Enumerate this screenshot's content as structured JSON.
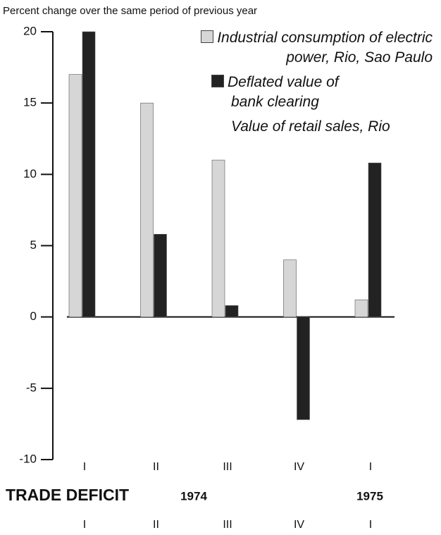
{
  "chart_data": {
    "type": "bar",
    "title": "Percent change over the same period of previous year",
    "categories": [
      "I",
      "II",
      "III",
      "IV",
      "I"
    ],
    "series": [
      {
        "name": "Industrial consumption of electric power, Rio, Sao Paulo",
        "color": "#d6d6d6",
        "values": [
          17,
          15,
          11,
          4,
          1.2
        ]
      },
      {
        "name": "Deflated value of bank clearing",
        "color": "#222222",
        "values": [
          20,
          5.8,
          0.8,
          -7.2,
          10.8
        ]
      },
      {
        "name": "Value of retail sales, Rio",
        "values": [
          null,
          null,
          null,
          null,
          null
        ]
      }
    ],
    "year_labels": [
      "1974",
      "1975"
    ],
    "trade_deficit": {
      "label": "TRADE DEFICIT",
      "categories": [
        "I",
        "II",
        "III",
        "IV",
        "I"
      ]
    },
    "ylim": [
      -10,
      20
    ],
    "yticks": [
      -10,
      -5,
      0,
      5,
      10,
      15,
      20
    ],
    "grid": false
  }
}
